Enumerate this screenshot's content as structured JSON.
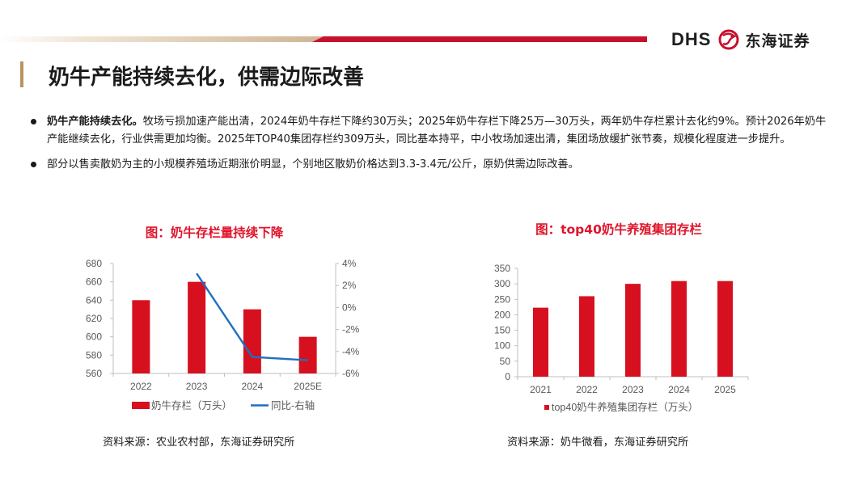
{
  "header": {
    "logo_latin": "DHS",
    "logo_cn": "东海证券"
  },
  "page_title": "奶牛产能持续去化，供需边际改善",
  "bullets": [
    {
      "lead": "奶牛产能持续去化。",
      "text": "牧场亏损加速产能出清，2024年奶牛存栏下降约30万头；2025年奶牛存栏下降25万—30万头，两年奶牛存栏累计去化约9%。预计2026年奶牛产能继续去化，行业供需更加均衡。2025年TOP40集团存栏约309万头，同比基本持平，中小牧场加速出清，集团场放缓扩张节奏，规模化程度进一步提升。"
    },
    {
      "lead": "",
      "text": "部分以售卖散奶为主的小规模养殖场近期涨价明显，个别地区散奶价格达到3.3-3.4元/公斤，原奶供需边际改善。"
    }
  ],
  "chart_data": [
    {
      "type": "bar",
      "title": "图：奶牛存栏量持续下降",
      "categories": [
        "2022",
        "2023",
        "2024",
        "2025E"
      ],
      "series": [
        {
          "name": "奶牛存栏（万头）",
          "type": "bar",
          "axis": "left",
          "color": "#d7101f",
          "values": [
            640,
            660,
            630,
            600
          ]
        },
        {
          "name": "同比-右轴",
          "type": "line",
          "axis": "right",
          "color": "#1f6fbf",
          "values": [
            null,
            3.1,
            -4.5,
            -4.8
          ]
        }
      ],
      "y_left": {
        "min": 560,
        "max": 680,
        "ticks": [
          "560",
          "580",
          "600",
          "620",
          "640",
          "660",
          "680"
        ]
      },
      "y_right": {
        "min": -6,
        "max": 4,
        "ticks": [
          "-6%",
          "-4%",
          "-2%",
          "0%",
          "2%",
          "4%"
        ]
      },
      "legend_position": "bottom",
      "source": "资料来源：农业农村部，东海证券研究所"
    },
    {
      "type": "bar",
      "title": "图：top40奶牛养殖集团存栏",
      "categories": [
        "2021",
        "2022",
        "2023",
        "2024",
        "2025"
      ],
      "series": [
        {
          "name": "top40奶牛养殖集团存栏（万头）",
          "type": "bar",
          "color": "#d7101f",
          "values": [
            223,
            260,
            300,
            309,
            309
          ]
        }
      ],
      "y_left": {
        "min": 0,
        "max": 350,
        "ticks": [
          "0",
          "50",
          "100",
          "150",
          "200",
          "250",
          "300",
          "350"
        ]
      },
      "legend_position": "bottom",
      "source": "资料来源：奶牛微看，东海证券研究所"
    }
  ],
  "colors": {
    "brand_red": "#c8102e",
    "accent_gold": "#b89462",
    "bar_red": "#d7101f",
    "line_blue": "#1f6fbf"
  }
}
